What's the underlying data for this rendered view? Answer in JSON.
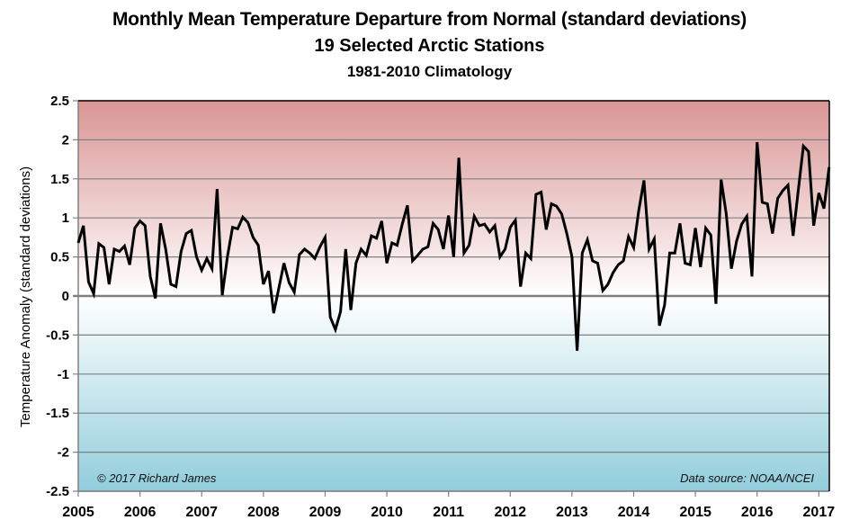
{
  "chart_data": {
    "type": "line",
    "title": "Monthly Mean Temperature Departure from Normal (standard deviations)",
    "subtitle": "19 Selected Arctic Stations",
    "subtitle2": "1981-2010 Climatology",
    "xlabel": "",
    "ylabel": "Temperature Anomaly (standard deviations)",
    "ylim": [
      -2.5,
      2.5
    ],
    "xlim": [
      2005,
      2017.17
    ],
    "yticks": [
      "2.5",
      "2",
      "1.5",
      "1",
      "0.5",
      "0",
      "-0.5",
      "-1",
      "-1.5",
      "-2",
      "-2.5"
    ],
    "ytick_values": [
      2.5,
      2,
      1.5,
      1,
      0.5,
      0,
      -0.5,
      -1,
      -1.5,
      -2,
      -2.5
    ],
    "xticks": [
      "2005",
      "2006",
      "2007",
      "2008",
      "2009",
      "2010",
      "2011",
      "2012",
      "2013",
      "2014",
      "2015",
      "2016",
      "2017"
    ],
    "xtick_values": [
      2005,
      2006,
      2007,
      2008,
      2009,
      2010,
      2011,
      2012,
      2013,
      2014,
      2015,
      2016,
      2017
    ],
    "grid": true,
    "background": "gradient: red above zero, blue below zero",
    "colors": {
      "line": "#000000",
      "top": "#d99594",
      "zero": "#ffffff",
      "bottom": "#92cddc",
      "grid": "#808080"
    },
    "annotations": {
      "left": "© 2017 Richard James",
      "right": "Data source: NOAA/NCEI"
    },
    "start": {
      "year": 2005,
      "month": 1
    },
    "series": [
      {
        "name": "Monthly anomaly",
        "values": [
          0.68,
          0.9,
          0.18,
          0.03,
          0.67,
          0.62,
          0.15,
          0.6,
          0.57,
          0.64,
          0.4,
          0.87,
          0.96,
          0.9,
          0.25,
          -0.03,
          0.93,
          0.6,
          0.15,
          0.12,
          0.57,
          0.8,
          0.84,
          0.5,
          0.33,
          0.48,
          0.35,
          1.37,
          0.01,
          0.5,
          0.88,
          0.86,
          1.01,
          0.94,
          0.75,
          0.65,
          0.15,
          0.32,
          -0.22,
          0.1,
          0.42,
          0.17,
          0.05,
          0.53,
          0.6,
          0.55,
          0.48,
          0.63,
          0.75,
          -0.27,
          -0.43,
          -0.2,
          0.6,
          -0.18,
          0.42,
          0.6,
          0.52,
          0.77,
          0.74,
          0.96,
          0.42,
          0.68,
          0.65,
          0.92,
          1.16,
          0.45,
          0.52,
          0.6,
          0.63,
          0.93,
          0.85,
          0.6,
          1.03,
          0.5,
          1.77,
          0.55,
          0.65,
          1.02,
          0.9,
          0.92,
          0.82,
          0.9,
          0.5,
          0.6,
          0.88,
          0.97,
          0.12,
          0.55,
          0.48,
          1.3,
          1.33,
          0.85,
          1.18,
          1.15,
          1.05,
          0.8,
          0.5,
          -0.7,
          0.55,
          0.72,
          0.45,
          0.42,
          0.07,
          0.15,
          0.3,
          0.4,
          0.45,
          0.76,
          0.62,
          1.1,
          1.48,
          0.6,
          0.73,
          -0.38,
          -0.12,
          0.55,
          0.55,
          0.93,
          0.42,
          0.4,
          0.87,
          0.37,
          0.87,
          0.78,
          -0.1,
          1.49,
          1.05,
          0.35,
          0.7,
          0.92,
          1.02,
          0.25,
          1.97,
          1.2,
          1.18,
          0.8,
          1.25,
          1.35,
          1.42,
          0.77,
          1.35,
          1.92,
          1.85,
          0.9,
          1.32,
          1.12,
          1.65
        ]
      }
    ]
  }
}
